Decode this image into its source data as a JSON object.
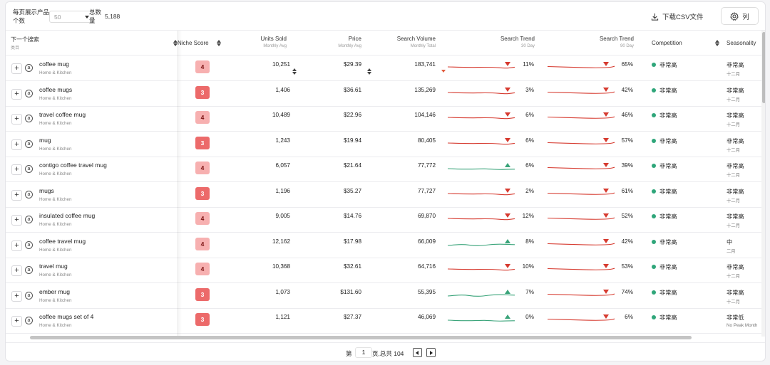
{
  "toolbar": {
    "per_page_label": "每页展示产品个数",
    "per_page_value": "50",
    "total_label": "总数量",
    "total_value": "5,188",
    "csv_label": "下载CSV文件",
    "columns_label": "列"
  },
  "headers": {
    "keyword": {
      "title": "下一个搜索",
      "sub": "类目"
    },
    "niche": {
      "title": "Niche Score"
    },
    "units": {
      "title": "Units Sold",
      "sub": "Monthly Avg"
    },
    "price": {
      "title": "Price",
      "sub": "Monthly Avg"
    },
    "volume": {
      "title": "Search Volume",
      "sub": "Monthly Total"
    },
    "trend30": {
      "title": "Search Trend",
      "sub": "30 Day"
    },
    "trend90": {
      "title": "Search Trend",
      "sub": "90 Day"
    },
    "competition": {
      "title": "Competition"
    },
    "seasonality": {
      "title": "Seasonality"
    }
  },
  "colors": {
    "down": "#d63a2f",
    "up": "#3aa47a"
  },
  "rows": [
    {
      "keyword": "coffee mug",
      "category": "Home & Kitchen",
      "niche": "4",
      "units": "10,251",
      "price": "$29.39",
      "volume": "183,741",
      "t30_dir": "down",
      "t30": "11%",
      "t90_dir": "down",
      "t90": "65%",
      "competition": "非常高",
      "season": "非常高",
      "season_sub": "十二月"
    },
    {
      "keyword": "coffee mugs",
      "category": "Home & Kitchen",
      "niche": "3",
      "units": "1,406",
      "price": "$36.61",
      "volume": "135,269",
      "t30_dir": "down",
      "t30": "3%",
      "t90_dir": "down",
      "t90": "42%",
      "competition": "非常高",
      "season": "非常高",
      "season_sub": "十二月"
    },
    {
      "keyword": "travel coffee mug",
      "category": "Home & Kitchen",
      "niche": "4",
      "units": "10,489",
      "price": "$22.96",
      "volume": "104,146",
      "t30_dir": "down",
      "t30": "6%",
      "t90_dir": "down",
      "t90": "46%",
      "competition": "非常高",
      "season": "非常高",
      "season_sub": "十二月"
    },
    {
      "keyword": "mug",
      "category": "Home & Kitchen",
      "niche": "3",
      "units": "1,243",
      "price": "$19.94",
      "volume": "80,405",
      "t30_dir": "down",
      "t30": "6%",
      "t90_dir": "down",
      "t90": "57%",
      "competition": "非常高",
      "season": "非常高",
      "season_sub": "十二月"
    },
    {
      "keyword": "contigo coffee travel mug",
      "category": "Home & Kitchen",
      "niche": "4",
      "units": "6,057",
      "price": "$21.64",
      "volume": "77,772",
      "t30_dir": "up",
      "t30": "6%",
      "t90_dir": "down",
      "t90": "39%",
      "competition": "非常高",
      "season": "非常高",
      "season_sub": "十二月"
    },
    {
      "keyword": "mugs",
      "category": "Home & Kitchen",
      "niche": "3",
      "units": "1,196",
      "price": "$35.27",
      "volume": "77,727",
      "t30_dir": "down",
      "t30": "2%",
      "t90_dir": "down",
      "t90": "61%",
      "competition": "非常高",
      "season": "非常高",
      "season_sub": "十二月"
    },
    {
      "keyword": "insulated coffee mug",
      "category": "Home & Kitchen",
      "niche": "4",
      "units": "9,005",
      "price": "$14.76",
      "volume": "69,870",
      "t30_dir": "down",
      "t30": "12%",
      "t90_dir": "down",
      "t90": "52%",
      "competition": "非常高",
      "season": "非常高",
      "season_sub": "十二月"
    },
    {
      "keyword": "coffee travel mug",
      "category": "Home & Kitchen",
      "niche": "4",
      "units": "12,162",
      "price": "$17.98",
      "volume": "66,009",
      "t30_dir": "up",
      "t30": "8%",
      "t90_dir": "down",
      "t90": "42%",
      "competition": "非常高",
      "season": "中",
      "season_sub": "二月"
    },
    {
      "keyword": "travel mug",
      "category": "Home & Kitchen",
      "niche": "4",
      "units": "10,368",
      "price": "$32.61",
      "volume": "64,716",
      "t30_dir": "down",
      "t30": "10%",
      "t90_dir": "down",
      "t90": "53%",
      "competition": "非常高",
      "season": "非常高",
      "season_sub": "十二月"
    },
    {
      "keyword": "ember mug",
      "category": "Home & Kitchen",
      "niche": "3",
      "units": "1,073",
      "price": "$131.60",
      "volume": "55,395",
      "t30_dir": "up",
      "t30": "7%",
      "t90_dir": "down",
      "t90": "74%",
      "competition": "非常高",
      "season": "非常高",
      "season_sub": "十二月"
    },
    {
      "keyword": "coffee mugs set of 4",
      "category": "Home & Kitchen",
      "niche": "3",
      "units": "1,121",
      "price": "$27.37",
      "volume": "46,069",
      "t30_dir": "up",
      "t30": "0%",
      "t90_dir": "down",
      "t90": "6%",
      "competition": "非常高",
      "season": "非常低",
      "season_sub": "No Peak Month"
    }
  ],
  "pager": {
    "prefix": "第",
    "page": "1",
    "suffix": "页,总共 104"
  }
}
